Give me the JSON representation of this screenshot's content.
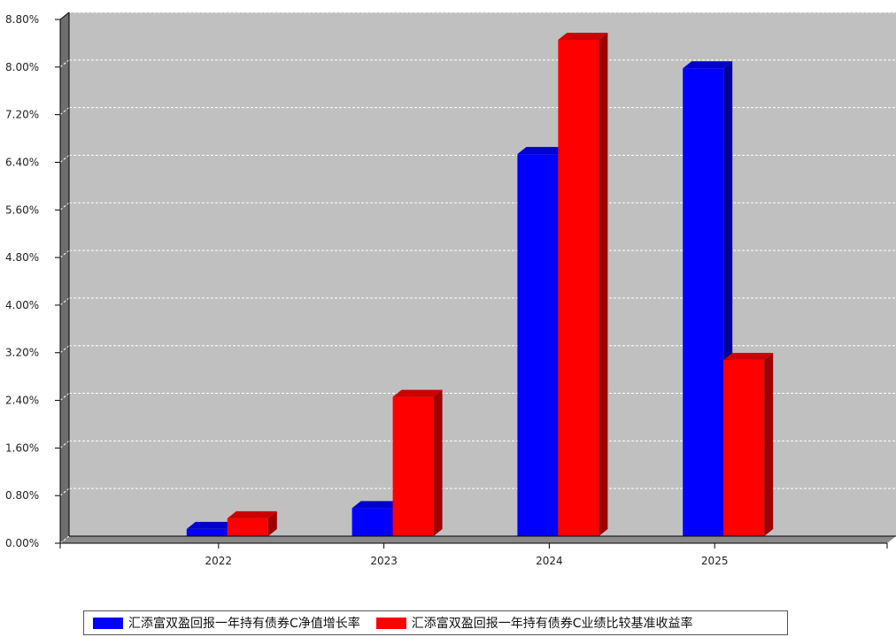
{
  "chart_data": {
    "type": "bar",
    "categories": [
      "2022",
      "2023",
      "2024",
      "2025"
    ],
    "series": [
      {
        "name": "汇添富双盈回报一年持有债券C净值增长率",
        "color": "#0000ff",
        "values": [
          0.12,
          0.47,
          6.42,
          7.86
        ]
      },
      {
        "name": "汇添富双盈回报一年持有债券C业绩比较基准收益率",
        "color": "#ff0000",
        "values": [
          0.3,
          2.34,
          8.34,
          2.96
        ]
      }
    ],
    "y_ticks": [
      "0.00%",
      "0.80%",
      "1.60%",
      "2.40%",
      "3.20%",
      "4.00%",
      "4.80%",
      "5.60%",
      "6.40%",
      "7.20%",
      "8.00%",
      "8.80%"
    ],
    "ylim": [
      0,
      8.8
    ],
    "grid": true,
    "legend_position": "bottom",
    "plot_background": "#c0c0c0"
  }
}
